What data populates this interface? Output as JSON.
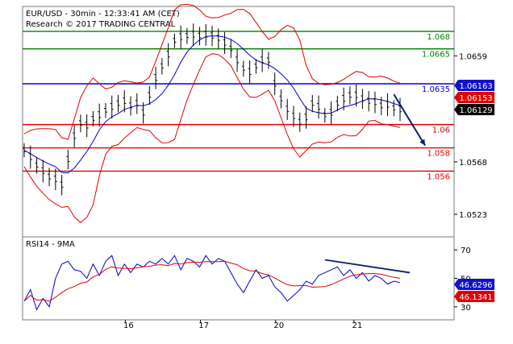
{
  "header": {
    "line1": "EUR/USD - 30min - 12:33:41 AM (CET)",
    "line2": "Research © 2017 TRADING CENTRAL"
  },
  "chart_data": [
    {
      "type": "line",
      "title": "EUR/USD - 30min - 12:33:41 AM (CET)",
      "subtitle": "Research © 2017 TRADING CENTRAL",
      "ylim": [
        1.0505,
        1.07
      ],
      "x_ticks": [
        "16",
        "17",
        "20",
        "21"
      ],
      "y_ticks": [
        1.0523,
        1.0568,
        1.0659
      ],
      "grid": false,
      "price_series": [
        1.0578,
        1.0572,
        1.0565,
        1.056,
        1.0555,
        1.0553,
        1.0548,
        1.057,
        1.059,
        1.0601,
        1.0599,
        1.0605,
        1.0608,
        1.0612,
        1.0615,
        1.0618,
        1.062,
        1.0616,
        1.0618,
        1.061,
        1.0625,
        1.064,
        1.065,
        1.066,
        1.0672,
        1.0675,
        1.0676,
        1.0677,
        1.0676,
        1.0677,
        1.0676,
        1.0674,
        1.067,
        1.0665,
        1.0655,
        1.0648,
        1.0645,
        1.065,
        1.0655,
        1.0655,
        1.0635,
        1.0622,
        1.0613,
        1.0607,
        1.0602,
        1.0606,
        1.0618,
        1.0615,
        1.0608,
        1.061,
        1.0618,
        1.0622,
        1.0625,
        1.0625,
        1.0622,
        1.062,
        1.0619,
        1.0616,
        1.0617,
        1.0614,
        1.0613
      ],
      "levels": [
        {
          "value": 1.068,
          "label": "1.068",
          "color": "#008000"
        },
        {
          "value": 1.0665,
          "label": "1.0665",
          "color": "#008000"
        },
        {
          "value": 1.0635,
          "label": "1.0635",
          "color": "#0000cc"
        },
        {
          "value": 1.06,
          "label": "1.06",
          "color": "#e00000"
        },
        {
          "value": 1.058,
          "label": "1.058",
          "color": "#e00000"
        },
        {
          "value": 1.056,
          "label": "1.056",
          "color": "#e00000"
        }
      ],
      "price_labels": [
        {
          "value": "1.06163",
          "bg": "#1010cc",
          "fg": "#ffffff"
        },
        {
          "value": "1.06153",
          "bg": "#e00000",
          "fg": "#ffffff"
        },
        {
          "value": "1.06129",
          "bg": "#000000",
          "fg": "#ffffff"
        }
      ],
      "projection_arrow": {
        "from": [
          1.0626,
          59
        ],
        "to": [
          1.0582,
          64
        ],
        "color": "#0a1e6e"
      },
      "bollinger_color": "#e00000",
      "ma_color": "#0000cc"
    },
    {
      "type": "line",
      "title": "RSI14 - 9MA",
      "ylim": [
        22,
        78
      ],
      "y_ticks": [
        30,
        50,
        70
      ],
      "grid": false,
      "rsi_series": [
        34,
        42,
        28,
        36,
        30,
        50,
        60,
        62,
        56,
        55,
        50,
        60,
        52,
        62,
        66,
        52,
        60,
        54,
        60,
        58,
        62,
        60,
        64,
        60,
        66,
        56,
        64,
        62,
        58,
        66,
        60,
        64,
        62,
        54,
        46,
        40,
        48,
        56,
        50,
        52,
        44,
        40,
        34,
        38,
        42,
        48,
        46,
        52,
        54,
        56,
        58,
        52,
        56,
        50,
        54,
        48,
        52,
        50,
        46,
        48,
        47
      ],
      "trendline": {
        "from": [
          63,
          54
        ],
        "to": [
          48,
          60
        ],
        "color": "#0a1e6e"
      },
      "value_labels": [
        {
          "value": "46.6296",
          "bg": "#1010cc",
          "fg": "#ffffff"
        },
        {
          "value": "46.1341",
          "bg": "#e00000",
          "fg": "#ffffff"
        }
      ],
      "rsi_color": "#0000cc",
      "ma_color": "#e00000"
    }
  ]
}
